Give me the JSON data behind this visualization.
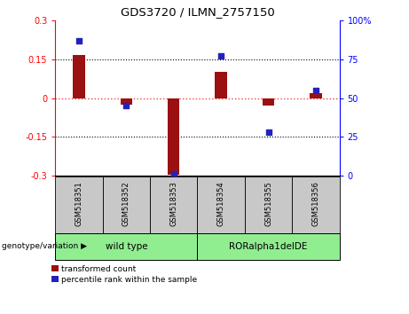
{
  "title": "GDS3720 / ILMN_2757150",
  "samples": [
    "GSM518351",
    "GSM518352",
    "GSM518353",
    "GSM518354",
    "GSM518355",
    "GSM518356"
  ],
  "transformed_count": [
    0.165,
    -0.025,
    -0.295,
    0.1,
    -0.03,
    0.02
  ],
  "percentile_rank": [
    87,
    45,
    1,
    77,
    28,
    55
  ],
  "group1_label": "wild type",
  "group2_label": "RORalpha1delDE",
  "group_prefix": "genotype/variation",
  "ylim_left": [
    -0.3,
    0.3
  ],
  "ylim_right": [
    0,
    100
  ],
  "yticks_left": [
    -0.3,
    -0.15,
    0,
    0.15,
    0.3
  ],
  "yticks_right": [
    0,
    25,
    50,
    75,
    100
  ],
  "yticklabels_right": [
    "0",
    "25",
    "50",
    "75",
    "100%"
  ],
  "bar_color": "#9B1010",
  "scatter_color": "#2222BB",
  "zero_line_color": "#EE4444",
  "grid_color": "#000000",
  "bar_width": 0.25,
  "scatter_size": 16,
  "group_color": "#90EE90",
  "sample_bg_color": "#C8C8C8",
  "legend_bar_label": "transformed count",
  "legend_scatter_label": "percentile rank within the sample"
}
